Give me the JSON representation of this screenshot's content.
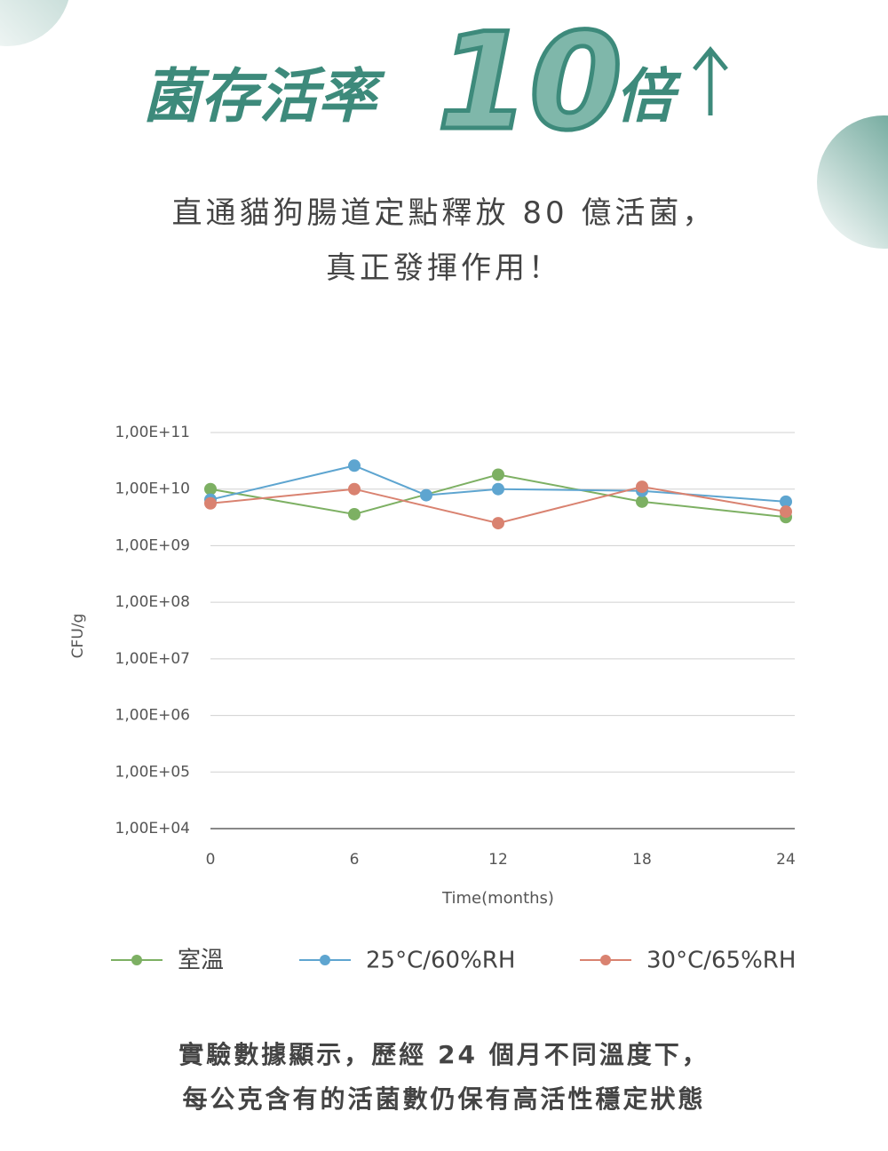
{
  "header": {
    "title_left": "菌存活率",
    "number": "10",
    "title_right": "倍"
  },
  "subtitle": [
    "直通貓狗腸道定點釋放 80 億活菌，",
    "真正發揮作用！"
  ],
  "chart_data": {
    "type": "line",
    "y_label": "CFU/g",
    "x_label": "Time(months)",
    "log_y": true,
    "grid": true,
    "xlim": [
      0,
      24
    ],
    "xticks": [
      0,
      6,
      12,
      18,
      24
    ],
    "ylim": [
      10000,
      100000000000
    ],
    "yticks": [
      {
        "value": 10000,
        "label": "1,00E+04"
      },
      {
        "value": 100000,
        "label": "1,00E+05"
      },
      {
        "value": 1000000,
        "label": "1,00E+06"
      },
      {
        "value": 10000000,
        "label": "1,00E+07"
      },
      {
        "value": 100000000,
        "label": "1,00E+08"
      },
      {
        "value": 1000000000,
        "label": "1,00E+09"
      },
      {
        "value": 10000000000,
        "label": "1,00E+10"
      },
      {
        "value": 100000000000,
        "label": "1,00E+11"
      }
    ],
    "series": [
      {
        "name": "室溫",
        "color": "#7db063",
        "x": [
          0,
          6,
          12,
          18,
          24
        ],
        "values": [
          10000000000,
          3600000000,
          18000000000,
          6000000000,
          3200000000
        ]
      },
      {
        "name": "25°C/60%RH",
        "color": "#5ea5d0",
        "x": [
          0,
          6,
          9,
          12,
          18,
          24
        ],
        "values": [
          6500000000,
          26000000000,
          7800000000,
          10000000000,
          9300000000,
          6000000000
        ]
      },
      {
        "name": "30°C/65%RH",
        "color": "#d98270",
        "x": [
          0,
          6,
          12,
          18,
          24
        ],
        "values": [
          5600000000,
          10000000000,
          2500000000,
          11000000000,
          4000000000
        ]
      }
    ]
  },
  "footer": [
    "實驗數據顯示，歷經 24 個月不同溫度下，",
    "每公克含有的活菌數仍保有高活性穩定狀態"
  ]
}
